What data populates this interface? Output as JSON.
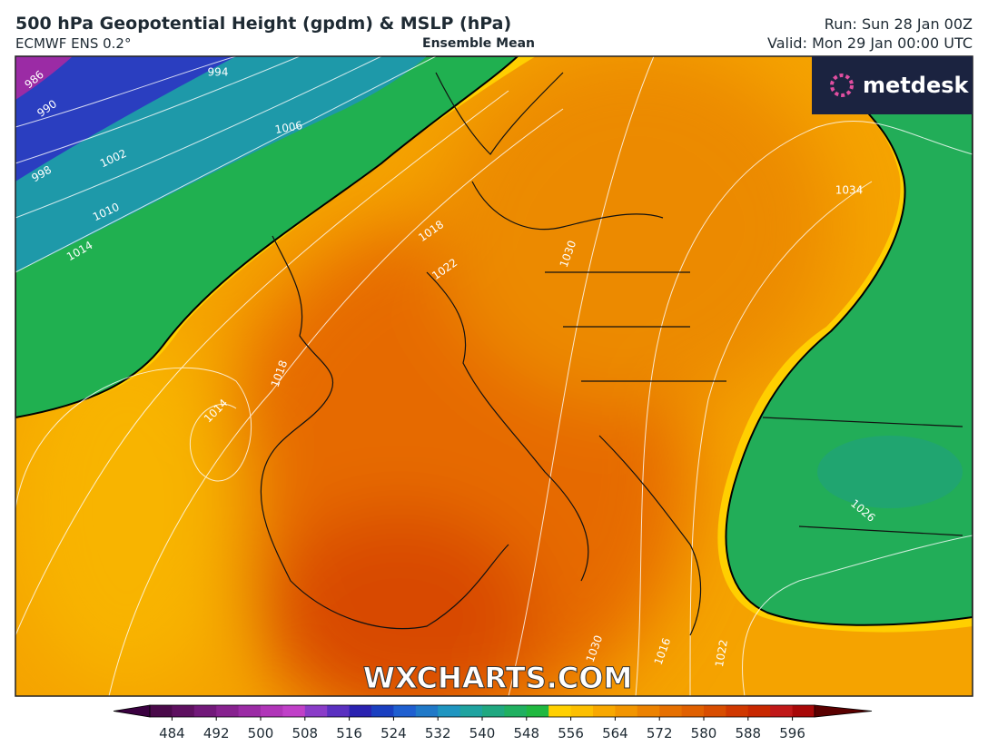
{
  "header": {
    "title": "500 hPa Geopotential Height (gpdm) & MSLP (hPa)",
    "model": "ECMWF ENS 0.2°",
    "product": "Ensemble Mean",
    "run": "Run: Sun 28 Jan 00Z",
    "valid": "Valid: Mon 29 Jan 00:00 UTC"
  },
  "logo": "metdesk",
  "watermark": "WXCHARTS.COM",
  "isobar_labels": [
    "986",
    "990",
    "994",
    "998",
    "1002",
    "1006",
    "1010",
    "1014",
    "1018",
    "1022",
    "1030",
    "1034",
    "1018",
    "1014",
    "1026",
    "1030",
    "1016",
    "1022"
  ],
  "colorbar": {
    "lim": [
      480,
      600
    ],
    "ticks": [
      484,
      492,
      500,
      508,
      516,
      524,
      532,
      540,
      548,
      556,
      564,
      572,
      580,
      588,
      596
    ],
    "colors": [
      "#4a0a4a",
      "#5e1060",
      "#72197a",
      "#87228f",
      "#9b2ba5",
      "#b035b8",
      "#c040c8",
      "#8a3cc8",
      "#5a30c0",
      "#2a22b0",
      "#1a3fc0",
      "#1f5fd0",
      "#2079c8",
      "#1f95c0",
      "#1fa3a0",
      "#20a880",
      "#20b060",
      "#20b840",
      "#ffd000",
      "#fcbf00",
      "#f8a800",
      "#f29500",
      "#ec8200",
      "#e67000",
      "#e06000",
      "#d84d00",
      "#d03800",
      "#c82800",
      "#c01818",
      "#a80808"
    ],
    "under": "#3a0040",
    "over": "#5a0000"
  }
}
